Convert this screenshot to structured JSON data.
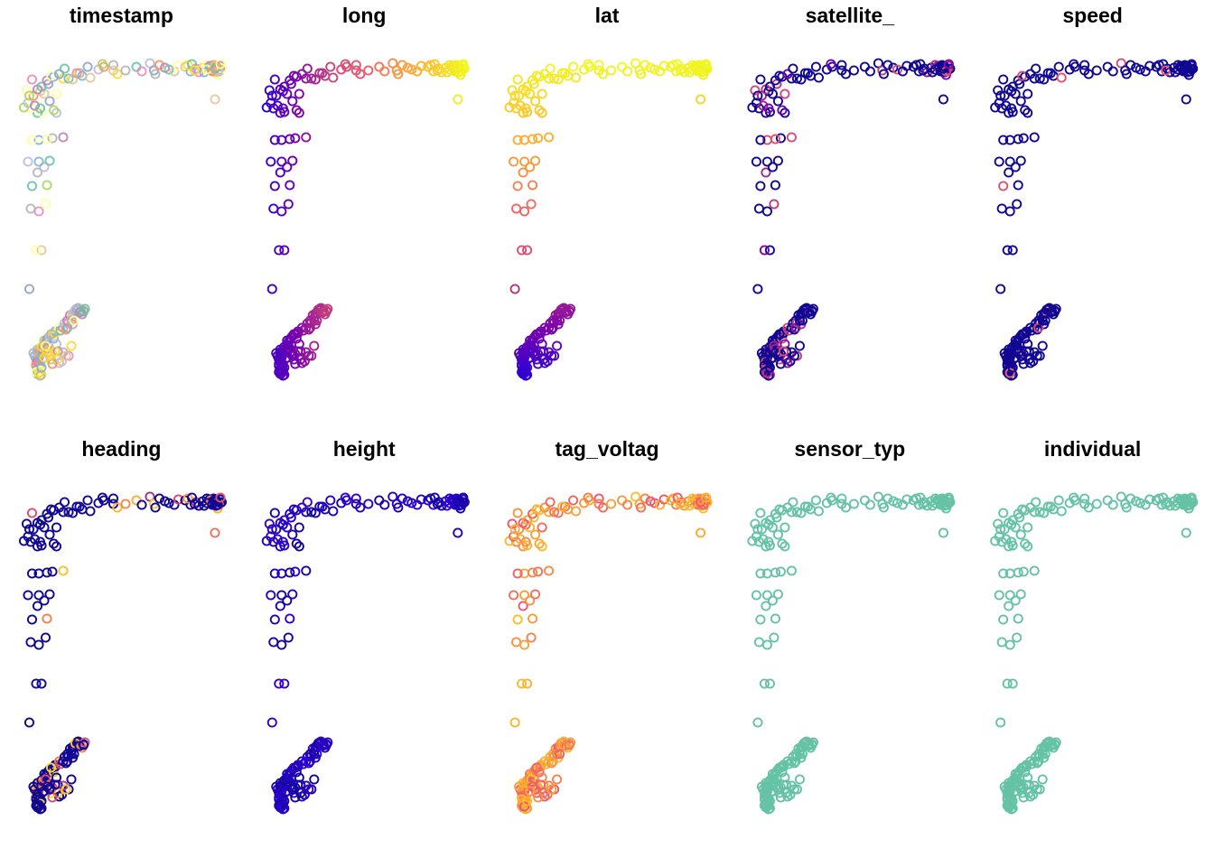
{
  "chart_data": {
    "type": "scatter",
    "layout": {
      "rows": 2,
      "cols": 5
    },
    "marker": "open-circle",
    "track": {
      "x": [
        170,
        171,
        172,
        171,
        172,
        170,
        171,
        173,
        172,
        171,
        172,
        170,
        169,
        171,
        173,
        172,
        170,
        171,
        173,
        172,
        171,
        170,
        172,
        174,
        173,
        172,
        171,
        173,
        175,
        174,
        176,
        177,
        176,
        178,
        179,
        180,
        181,
        182,
        179,
        178,
        177,
        180,
        182,
        184,
        183,
        185,
        186,
        184,
        187,
        188,
        190,
        191,
        193,
        192,
        194,
        196,
        195,
        197,
        199,
        198,
        200,
        197,
        193,
        196,
        199,
        201,
        203,
        204,
        202,
        205,
        206,
        205,
        175,
        187,
        189,
        178,
        186,
        194,
        182,
        190,
        180,
        168,
        176,
        184,
        192,
        174,
        196,
        181,
        198,
        165,
        174,
        170,
        166,
        172,
        177,
        167,
        171,
        176,
        178,
        164,
        172,
        180,
        190,
        182,
        172,
        167,
        178,
        171,
        185,
        183,
        174,
        166,
        161,
        164,
        169,
        173,
        180,
        168,
        163,
        165,
        173,
        185,
        176,
        171,
        167,
        179,
        174,
        178,
        183,
        190,
        181,
        187,
        194,
        202,
        191,
        197,
        200,
        204,
        210,
        208,
        216,
        220,
        219,
        227,
        227,
        230,
        236,
        244,
        248,
        254,
        257,
        261,
        258,
        265,
        268,
        272,
        275,
        280,
        288,
        284,
        282,
        285,
        290,
        287,
        293,
        296,
        298,
        294,
        299,
        304,
        301,
        299,
        303,
        306,
        300,
        306,
        305,
        303,
        300,
        296,
        302,
        307,
        304,
        303,
        302,
        306,
        302
      ],
      "y": [
        397,
        399,
        395,
        401,
        393,
        403,
        390,
        404,
        396,
        392,
        402,
        398,
        394,
        400,
        391,
        406,
        405,
        409,
        410,
        413,
        414,
        412,
        411,
        415,
        416,
        413,
        387,
        387,
        387,
        384,
        382,
        379,
        377,
        376,
        382,
        392,
        398,
        392,
        374,
        386,
        383,
        372,
        370,
        367,
        375,
        381,
        389,
        369,
        363,
        366,
        363,
        358,
        355,
        365,
        357,
        352,
        349,
        347,
        344,
        346,
        342,
        359,
        363,
        355,
        343,
        341,
        345,
        348,
        346,
        344,
        342,
        345,
        397,
        402,
        400,
        391,
        398,
        394,
        403,
        390,
        394,
        391,
        396,
        389,
        394,
        407,
        383,
        370,
        355,
        320,
        277,
        277,
        231,
        234,
        226,
        206,
        191,
        185,
        205,
        179,
        179,
        178,
        152,
        153,
        155,
        155,
        154,
        125,
        125,
        122,
        124,
        120,
        119,
        114,
        117,
        120,
        112,
        106,
        100,
        106,
        101,
        104,
        104,
        99,
        88,
        93,
        96,
        89,
        85,
        87,
        84,
        82,
        87,
        81,
        76,
        88,
        81,
        84,
        86,
        74,
        77,
        74,
        71,
        72,
        78,
        82,
        78,
        74,
        79,
        70,
        78,
        72,
        82,
        75,
        77,
        79,
        73,
        74,
        76,
        79,
        72,
        71,
        80,
        78,
        75,
        72,
        73,
        80,
        76,
        83,
        72,
        74,
        80,
        77,
        79,
        73,
        79,
        74,
        78,
        77,
        73,
        76,
        79,
        74,
        76,
        71,
        110
      ],
      "xlim": [
        162,
        310
      ],
      "ylim": [
        62,
        422
      ]
    },
    "panels": [
      {
        "title": "timestamp",
        "palette": "qualitative"
      },
      {
        "title": "long",
        "palette": "plasma",
        "scale_by": "x"
      },
      {
        "title": "lat",
        "palette": "plasma",
        "scale_by": "y",
        "inverted": true
      },
      {
        "title": "satellite_",
        "palette": "plasma",
        "scale_by": "satellite"
      },
      {
        "title": "speed",
        "palette": "plasma",
        "scale_by": "speed"
      },
      {
        "title": "heading",
        "palette": "plasma",
        "scale_by": "heading"
      },
      {
        "title": "height",
        "palette": "plasma",
        "scale_by": "height"
      },
      {
        "title": "tag_voltag",
        "palette": "plasma",
        "scale_by": "voltage"
      },
      {
        "title": "sensor_typ",
        "palette": "single",
        "color": "#66c2a5"
      },
      {
        "title": "individual",
        "palette": "single",
        "color": "#66c2a5"
      }
    ],
    "colors": {
      "plasma": [
        "#0d0887",
        "#2a00d5",
        "#7d03a8",
        "#cc4778",
        "#f0586e",
        "#f89540",
        "#fdc328",
        "#f0f921"
      ],
      "qualitative": [
        "#66c2a5",
        "#fc8d62",
        "#8da0cb",
        "#e78ac3",
        "#a6d854",
        "#ffd92f",
        "#e5c494",
        "#b3b3b3",
        "#ffff99",
        "#bebada",
        "#80b1d3",
        "#bc80bd"
      ]
    }
  }
}
